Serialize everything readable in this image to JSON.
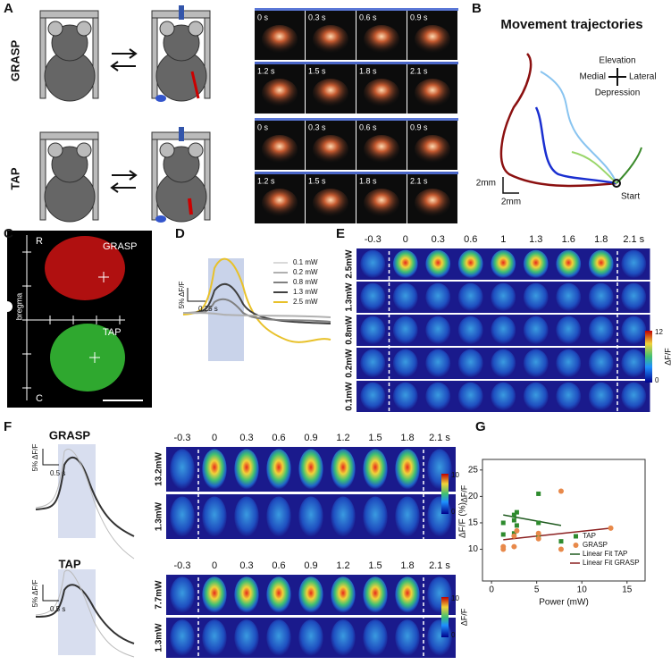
{
  "panels": {
    "A": "A",
    "B": "B",
    "C": "C",
    "D": "D",
    "E": "E",
    "F": "F",
    "G": "G"
  },
  "a": {
    "grasp": "GRASP",
    "tap": "TAP",
    "grasp_frames": [
      "0 s",
      "0.3 s",
      "0.6 s",
      "0.9 s",
      "1.2 s",
      "1.5 s",
      "1.8 s",
      "2.1 s"
    ],
    "tap_frames": [
      "0 s",
      "0.3 s",
      "0.6 s",
      "0.9 s",
      "1.2 s",
      "1.5 s",
      "1.8 s",
      "2.1 s"
    ]
  },
  "b": {
    "title": "Movement trajectories",
    "elevation": "Elevation",
    "medial": "Medial",
    "lateral": "Lateral",
    "depression": "Depression",
    "start": "Start",
    "scale_y": "2mm",
    "scale_x": "2mm"
  },
  "c": {
    "rostral": "R",
    "caudal": "C",
    "grasp": "GRASP",
    "tap": "TAP",
    "bregma": "bregma"
  },
  "d": {
    "scale_y": "5% ΔF/F",
    "scale_x": "0.25 s",
    "legend": [
      {
        "name": "0.1 mW",
        "color": "#d9d9d9"
      },
      {
        "name": "0.2 mW",
        "color": "#b0b0b0"
      },
      {
        "name": "0.8 mW",
        "color": "#808080"
      },
      {
        "name": "1.3 mW",
        "color": "#404040"
      },
      {
        "name": "2.5 mW",
        "color": "#e8c12a"
      }
    ]
  },
  "e": {
    "times": [
      "-0.3",
      "0",
      "0.3",
      "0.6",
      "1",
      "1.3",
      "1.6",
      "1.8",
      "2.1 s"
    ],
    "rows": [
      "2.5mW",
      "1.3mW",
      "0.8mW",
      "0.2mW",
      "0.1mW"
    ],
    "colorbar_max": "12",
    "colorbar_min": "0",
    "colorbar_label": "ΔF/F"
  },
  "f": {
    "grasp": {
      "title": "GRASP",
      "scale_y": "5% ΔF/F",
      "scale_x": "0.5 s",
      "times": [
        "-0.3",
        "0",
        "0.3",
        "0.6",
        "0.9",
        "1.2",
        "1.5",
        "1.8",
        "2.1 s"
      ],
      "rows": [
        "13.2mW",
        "1.3mW"
      ],
      "colorbar_max": "10",
      "colorbar_min": "0",
      "colorbar_label": "ΔF/F"
    },
    "tap": {
      "title": "TAP",
      "scale_y": "5% ΔF/F",
      "scale_x": "0.5 s",
      "times": [
        "-0.3",
        "0",
        "0.3",
        "0.6",
        "0.9",
        "1.2",
        "1.5",
        "1.8",
        "2.1 s"
      ],
      "rows": [
        "7.7mW",
        "1.3mW"
      ],
      "colorbar_max": "10",
      "colorbar_min": "0",
      "colorbar_label": "ΔF/F"
    }
  },
  "g": {
    "type": "scatter",
    "xlabel": "Power (mW)",
    "ylabel": "ΔF/F (%)",
    "xlim": [
      -1,
      17
    ],
    "ylim": [
      4,
      27
    ],
    "xticks": [
      0,
      5,
      10,
      15
    ],
    "yticks": [
      10,
      15,
      20,
      25
    ],
    "series": [
      {
        "name": "TAP",
        "color": "#2e8b2e",
        "marker": "square",
        "x": [
          1.3,
          1.3,
          2.5,
          2.5,
          2.8,
          2.8,
          2.5,
          5.2,
          5.2,
          5.2,
          7.7
        ],
        "values": [
          12.8,
          15,
          15.5,
          16.5,
          17,
          14.5,
          13,
          20.5,
          15,
          12.5,
          11.5
        ]
      },
      {
        "name": "GRASP",
        "color": "#e8894a",
        "marker": "circle",
        "x": [
          1.3,
          1.3,
          2.5,
          2.5,
          2.8,
          5.2,
          5.2,
          7.7,
          7.7,
          13.2
        ],
        "values": [
          10.5,
          10,
          10.5,
          12.5,
          13.5,
          13,
          12,
          21,
          10,
          14
        ]
      }
    ],
    "fits": [
      {
        "name": "Linear Fit TAP",
        "color": "#1f5a1f",
        "x": [
          1.3,
          7.7
        ],
        "values": [
          16.5,
          14.5
        ]
      },
      {
        "name": "Linear Fit GRASP",
        "color": "#8b2020",
        "x": [
          1.3,
          13.2
        ],
        "values": [
          11.8,
          14
        ]
      }
    ]
  }
}
